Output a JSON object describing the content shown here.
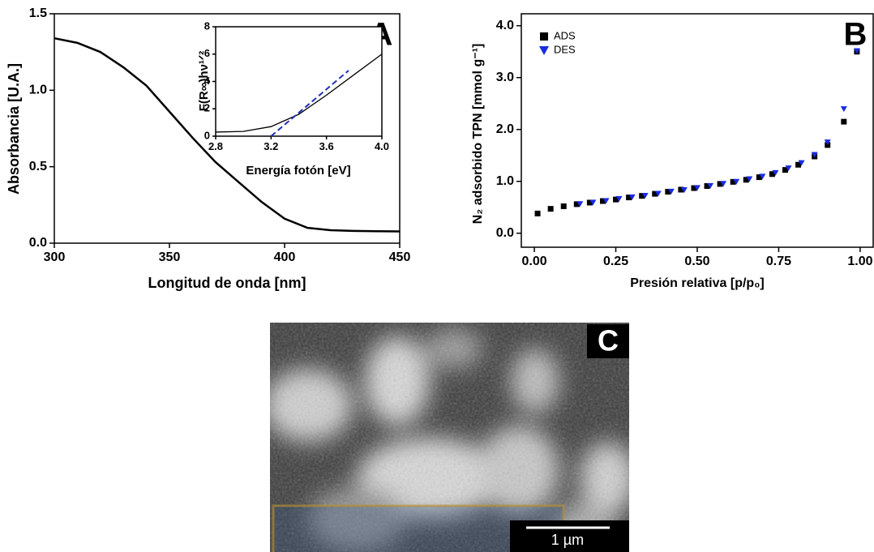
{
  "chart_data": [
    {
      "type": "line",
      "panel_label": "A",
      "xlabel": "Longitud de onda [nm]",
      "ylabel": "Absorbancia [U.A.]",
      "xlim": [
        300,
        450
      ],
      "ylim": [
        0,
        1.5
      ],
      "xticks": [
        300,
        350,
        400,
        450
      ],
      "yticks": [
        {
          "value": 0,
          "label": "0.0"
        },
        0.5,
        {
          "value": 1,
          "label": "1.0"
        },
        1.5
      ],
      "series": [
        {
          "color": "#000000",
          "style": "solid",
          "x": [
            300,
            310,
            320,
            330,
            340,
            350,
            360,
            370,
            380,
            390,
            400,
            410,
            420,
            430,
            440,
            450
          ],
          "values": [
            1.34,
            1.31,
            1.25,
            1.15,
            1.03,
            0.86,
            0.69,
            0.53,
            0.4,
            0.27,
            0.16,
            0.1,
            0.085,
            0.08,
            0.078,
            0.077
          ]
        }
      ]
    },
    {
      "type": "line",
      "xlabel": "Energía fotón [eV]",
      "ylabel": "F(R∞)hν¹ᐟ²",
      "xlim": [
        2.8,
        4.0
      ],
      "ylim": [
        0,
        8
      ],
      "xticks": [
        2.8,
        3.2,
        3.6,
        {
          "value": 4,
          "label": "4.0"
        }
      ],
      "yticks": [
        0,
        2,
        4,
        6,
        8
      ],
      "series": [
        {
          "color": "#000000",
          "style": "solid",
          "x": [
            2.8,
            3.0,
            3.2,
            3.4,
            3.6,
            3.8,
            4.0
          ],
          "values": [
            0.3,
            0.35,
            0.7,
            1.6,
            3.0,
            4.5,
            6.0
          ]
        },
        {
          "color": "#1f2fb8",
          "style": "dashed",
          "x": [
            3.2,
            3.76
          ],
          "values": [
            0,
            4.8
          ]
        }
      ]
    },
    {
      "type": "scatter",
      "panel_label": "B",
      "xlabel": "Presión relativa [p/p₀]",
      "ylabel": "N₂ adsorbido TPN [mmol g⁻¹]",
      "xlim": [
        -0.04,
        1.04
      ],
      "ylim": [
        -0.27,
        4.23
      ],
      "xticks": [
        {
          "value": 0,
          "label": "0.00"
        },
        0.25,
        {
          "value": 0.5,
          "label": "0.50"
        },
        0.75,
        {
          "value": 1,
          "label": "1.00"
        }
      ],
      "yticks": [
        {
          "value": 0,
          "label": "0.0"
        },
        {
          "value": 1,
          "label": "1.0"
        },
        {
          "value": 2,
          "label": "2.0"
        },
        {
          "value": 3,
          "label": "3.0"
        },
        {
          "value": 4,
          "label": "4.0"
        }
      ],
      "legend": "upper left",
      "series": [
        {
          "name": "ADS",
          "color": "#000000",
          "marker": "square",
          "x": [
            0.01,
            0.05,
            0.09,
            0.13,
            0.17,
            0.21,
            0.25,
            0.29,
            0.33,
            0.37,
            0.41,
            0.45,
            0.49,
            0.53,
            0.57,
            0.61,
            0.65,
            0.69,
            0.73,
            0.77,
            0.81,
            0.86,
            0.9,
            0.95,
            0.99
          ],
          "values": [
            0.38,
            0.47,
            0.52,
            0.56,
            0.59,
            0.62,
            0.65,
            0.69,
            0.72,
            0.76,
            0.8,
            0.84,
            0.87,
            0.91,
            0.95,
            0.99,
            1.03,
            1.08,
            1.14,
            1.22,
            1.32,
            1.48,
            1.7,
            2.15,
            3.5
          ]
        },
        {
          "name": "DES",
          "color": "#1a2be0",
          "marker": "triangle-down",
          "x": [
            0.99,
            0.95,
            0.9,
            0.86,
            0.82,
            0.78,
            0.74,
            0.7,
            0.66,
            0.62,
            0.58,
            0.54,
            0.5,
            0.46,
            0.42,
            0.38,
            0.34,
            0.3,
            0.26,
            0.22,
            0.18,
            0.14
          ],
          "values": [
            3.52,
            2.4,
            1.76,
            1.52,
            1.36,
            1.26,
            1.17,
            1.1,
            1.05,
            1.0,
            0.96,
            0.92,
            0.88,
            0.84,
            0.81,
            0.77,
            0.73,
            0.7,
            0.67,
            0.63,
            0.6,
            0.57
          ]
        }
      ]
    }
  ],
  "image": {
    "label": "C",
    "scale_bar": "1 µm"
  }
}
